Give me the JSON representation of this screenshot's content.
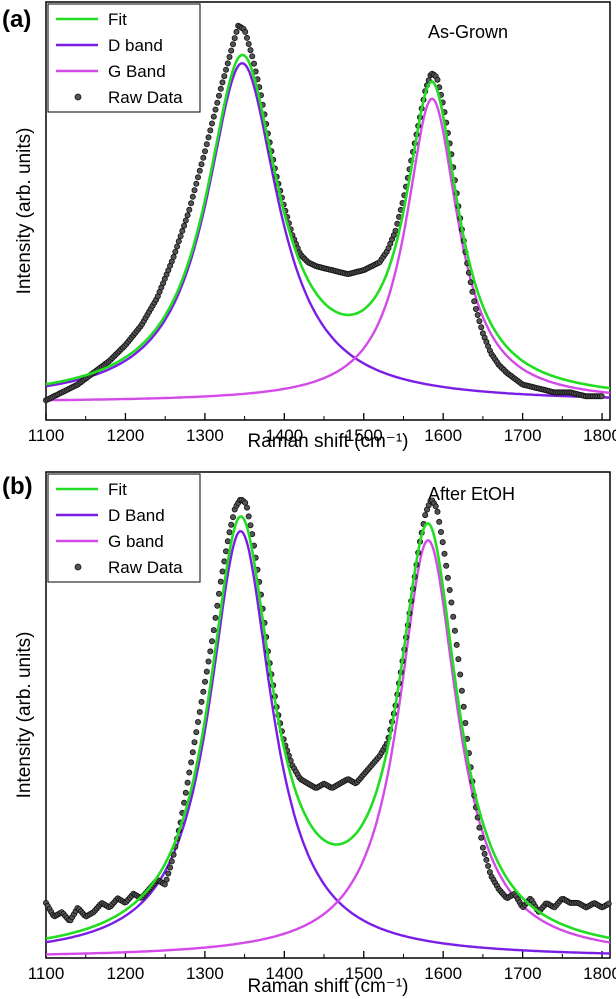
{
  "chart_data": [
    {
      "type": "line",
      "panel_label": "(a)",
      "annotation": "As-Grown",
      "xlabel": "Raman shift (cm⁻¹)",
      "ylabel": "Intensity (arb. units)",
      "xlim": [
        1100,
        1810
      ],
      "ylim": [
        0,
        1.05
      ],
      "xticks": [
        "1100",
        "1200",
        "1300",
        "1400",
        "1500",
        "1600",
        "1700",
        "1800"
      ],
      "grid": false,
      "legend_placement": "top-left",
      "components": {
        "D": {
          "center": 1347,
          "hwhm": 55,
          "amplitude": 0.86
        },
        "G": {
          "center": 1586,
          "hwhm": 40,
          "amplitude": 0.77
        },
        "baseline": 0.045
      },
      "raw_points": [
        [
          1100,
          0.05
        ],
        [
          1120,
          0.07
        ],
        [
          1140,
          0.09
        ],
        [
          1160,
          0.12
        ],
        [
          1180,
          0.15
        ],
        [
          1200,
          0.19
        ],
        [
          1220,
          0.24
        ],
        [
          1240,
          0.31
        ],
        [
          1260,
          0.41
        ],
        [
          1280,
          0.53
        ],
        [
          1300,
          0.68
        ],
        [
          1320,
          0.84
        ],
        [
          1335,
          0.95
        ],
        [
          1342,
          1.0
        ],
        [
          1350,
          0.99
        ],
        [
          1360,
          0.92
        ],
        [
          1370,
          0.83
        ],
        [
          1380,
          0.72
        ],
        [
          1390,
          0.62
        ],
        [
          1400,
          0.54
        ],
        [
          1410,
          0.47
        ],
        [
          1420,
          0.42
        ],
        [
          1430,
          0.4
        ],
        [
          1440,
          0.39
        ],
        [
          1450,
          0.385
        ],
        [
          1460,
          0.38
        ],
        [
          1470,
          0.375
        ],
        [
          1480,
          0.37
        ],
        [
          1490,
          0.375
        ],
        [
          1500,
          0.38
        ],
        [
          1510,
          0.39
        ],
        [
          1520,
          0.4
        ],
        [
          1530,
          0.43
        ],
        [
          1540,
          0.48
        ],
        [
          1550,
          0.56
        ],
        [
          1560,
          0.66
        ],
        [
          1570,
          0.76
        ],
        [
          1578,
          0.84
        ],
        [
          1585,
          0.88
        ],
        [
          1592,
          0.87
        ],
        [
          1600,
          0.8
        ],
        [
          1610,
          0.68
        ],
        [
          1620,
          0.53
        ],
        [
          1630,
          0.4
        ],
        [
          1640,
          0.29
        ],
        [
          1650,
          0.22
        ],
        [
          1660,
          0.17
        ],
        [
          1670,
          0.14
        ],
        [
          1680,
          0.12
        ],
        [
          1700,
          0.09
        ],
        [
          1720,
          0.08
        ],
        [
          1740,
          0.07
        ],
        [
          1760,
          0.07
        ],
        [
          1780,
          0.06
        ],
        [
          1800,
          0.06
        ]
      ],
      "series": [
        {
          "name": "Fit",
          "color": "#22dd22",
          "kind": "fit"
        },
        {
          "name": "D band",
          "color": "#7a1ee6",
          "kind": "d"
        },
        {
          "name": "G Band",
          "color": "#d44ae8",
          "kind": "g"
        },
        {
          "name": "Raw Data",
          "color": "#333333",
          "kind": "raw"
        }
      ]
    },
    {
      "type": "line",
      "panel_label": "(b)",
      "annotation": "After EtOH",
      "xlabel": "Raman shift (cm⁻¹)",
      "ylabel": "Intensity (arb. units)",
      "xlim": [
        1100,
        1810
      ],
      "ylim": [
        0,
        1.05
      ],
      "xticks": [
        "1100",
        "1200",
        "1300",
        "1400",
        "1500",
        "1600",
        "1700",
        "1800"
      ],
      "grid": false,
      "legend_placement": "top-left",
      "components": {
        "D": {
          "center": 1345,
          "hwhm": 48,
          "amplitude": 0.93
        },
        "G": {
          "center": 1581,
          "hwhm": 45,
          "amplitude": 0.91
        },
        "baseline": 0.0
      },
      "raw_points": [
        [
          1100,
          0.12
        ],
        [
          1110,
          0.09
        ],
        [
          1120,
          0.1
        ],
        [
          1130,
          0.08
        ],
        [
          1140,
          0.11
        ],
        [
          1150,
          0.09
        ],
        [
          1160,
          0.1
        ],
        [
          1170,
          0.12
        ],
        [
          1180,
          0.11
        ],
        [
          1190,
          0.13
        ],
        [
          1200,
          0.12
        ],
        [
          1210,
          0.14
        ],
        [
          1220,
          0.13
        ],
        [
          1230,
          0.15
        ],
        [
          1240,
          0.17
        ],
        [
          1250,
          0.16
        ],
        [
          1260,
          0.22
        ],
        [
          1270,
          0.3
        ],
        [
          1280,
          0.4
        ],
        [
          1290,
          0.5
        ],
        [
          1300,
          0.6
        ],
        [
          1310,
          0.7
        ],
        [
          1320,
          0.82
        ],
        [
          1330,
          0.92
        ],
        [
          1338,
          0.98
        ],
        [
          1345,
          1.0
        ],
        [
          1352,
          0.99
        ],
        [
          1360,
          0.92
        ],
        [
          1370,
          0.8
        ],
        [
          1380,
          0.66
        ],
        [
          1390,
          0.55
        ],
        [
          1400,
          0.47
        ],
        [
          1410,
          0.42
        ],
        [
          1420,
          0.39
        ],
        [
          1430,
          0.38
        ],
        [
          1440,
          0.37
        ],
        [
          1450,
          0.38
        ],
        [
          1460,
          0.37
        ],
        [
          1470,
          0.38
        ],
        [
          1480,
          0.39
        ],
        [
          1490,
          0.38
        ],
        [
          1500,
          0.4
        ],
        [
          1510,
          0.42
        ],
        [
          1520,
          0.44
        ],
        [
          1530,
          0.47
        ],
        [
          1540,
          0.55
        ],
        [
          1550,
          0.66
        ],
        [
          1560,
          0.78
        ],
        [
          1570,
          0.9
        ],
        [
          1578,
          0.97
        ],
        [
          1585,
          1.0
        ],
        [
          1592,
          0.98
        ],
        [
          1600,
          0.9
        ],
        [
          1610,
          0.78
        ],
        [
          1620,
          0.64
        ],
        [
          1630,
          0.48
        ],
        [
          1640,
          0.34
        ],
        [
          1650,
          0.24
        ],
        [
          1660,
          0.18
        ],
        [
          1670,
          0.15
        ],
        [
          1680,
          0.13
        ],
        [
          1690,
          0.14
        ],
        [
          1700,
          0.11
        ],
        [
          1710,
          0.13
        ],
        [
          1720,
          0.1
        ],
        [
          1730,
          0.12
        ],
        [
          1740,
          0.11
        ],
        [
          1750,
          0.13
        ],
        [
          1760,
          0.12
        ],
        [
          1770,
          0.12
        ],
        [
          1780,
          0.11
        ],
        [
          1790,
          0.12
        ],
        [
          1800,
          0.11
        ],
        [
          1810,
          0.12
        ]
      ],
      "series": [
        {
          "name": "Fit",
          "color": "#22dd22",
          "kind": "fit"
        },
        {
          "name": "D Band",
          "color": "#7a1ee6",
          "kind": "d"
        },
        {
          "name": "G band",
          "color": "#d44ae8",
          "kind": "g"
        },
        {
          "name": "Raw Data",
          "color": "#333333",
          "kind": "raw"
        }
      ]
    }
  ]
}
